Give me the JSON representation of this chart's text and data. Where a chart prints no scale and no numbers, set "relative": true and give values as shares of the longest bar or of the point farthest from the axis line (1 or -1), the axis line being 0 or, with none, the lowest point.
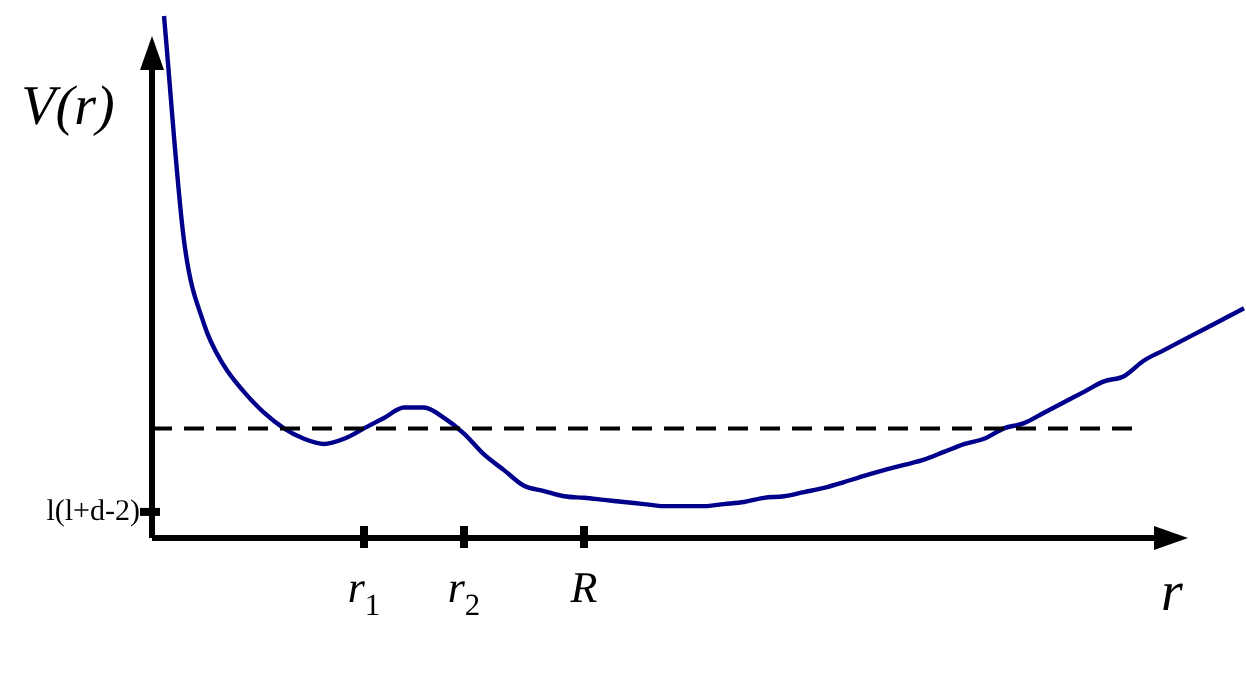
{
  "chart_data": {
    "type": "line",
    "relative": true,
    "xlabel": "r",
    "ylabel": "V(r)",
    "legend": false,
    "marker": "none",
    "categories": [
      null,
      null,
      null,
      null,
      null,
      null,
      null,
      null,
      null,
      null,
      "r$_{1}$",
      null,
      null,
      null,
      null,
      "r$_{2}$",
      null,
      null,
      null,
      null,
      null,
      "R",
      null,
      null,
      null,
      null,
      null,
      null,
      null,
      null,
      null,
      null,
      null,
      null,
      null,
      null,
      null,
      null,
      null,
      null,
      null,
      null,
      null,
      null,
      null,
      null,
      null,
      null,
      null,
      null,
      null,
      null,
      null,
      null,
      null
    ],
    "series": [
      {
        "color": "#00008b",
        "values": [
          1.0,
          0.57,
          0.41,
          0.33,
          0.28,
          0.24,
          0.21,
          0.19,
          0.18,
          0.19,
          0.21,
          0.23,
          0.25,
          0.25,
          0.23,
          0.2,
          0.16,
          0.13,
          0.1,
          0.09,
          0.08,
          0.077,
          0.073,
          0.069,
          0.065,
          0.061,
          0.061,
          0.061,
          0.065,
          0.069,
          0.077,
          0.08,
          0.088,
          0.096,
          0.107,
          0.119,
          0.13,
          0.14,
          0.15,
          0.165,
          0.18,
          0.19,
          0.21,
          0.22,
          0.24,
          0.26,
          0.28,
          0.3,
          0.31,
          0.34,
          0.36,
          0.38,
          0.4,
          0.42,
          0.44
        ]
      }
    ],
    "ref_lines": [
      {
        "axis": "y",
        "value": 0.21,
        "color": "#000000",
        "line_style": "dashed"
      },
      {
        "axis": "y",
        "value": 0.05,
        "label": "l(l+d-2)",
        "color": "#000000"
      }
    ]
  }
}
